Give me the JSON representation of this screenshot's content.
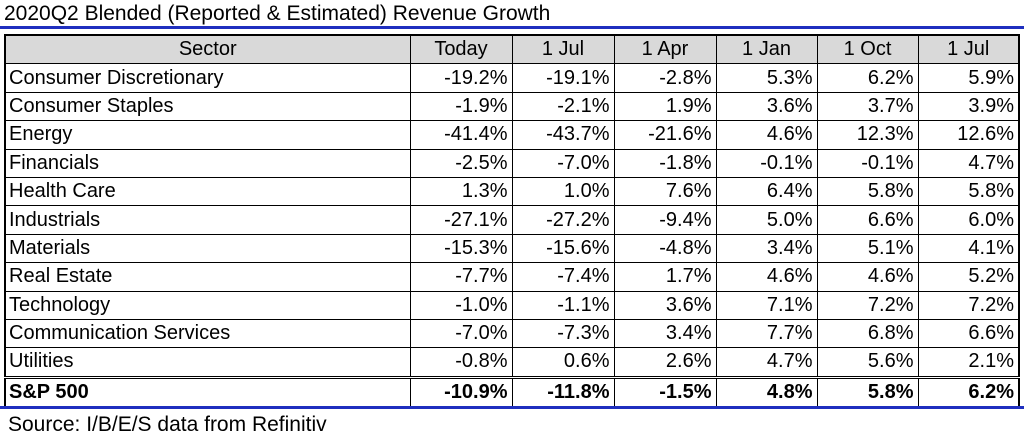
{
  "title": "2020Q2 Blended (Reported & Estimated) Revenue Growth",
  "source": "Source: I/B/E/S data from Refinitiv",
  "colors": {
    "rule": "#1f2fbf",
    "header_bg": "#d9d9d9"
  },
  "chart_data": {
    "type": "table",
    "title": "2020Q2 Blended (Reported & Estimated) Revenue Growth",
    "columns": [
      "Sector",
      "Today",
      "1 Jul",
      "1 Apr",
      "1 Jan",
      "1 Oct",
      "1 Jul"
    ],
    "rows": [
      [
        "Consumer Discretionary",
        "-19.2%",
        "-19.1%",
        "-2.8%",
        "5.3%",
        "6.2%",
        "5.9%"
      ],
      [
        "Consumer Staples",
        "-1.9%",
        "-2.1%",
        "1.9%",
        "3.6%",
        "3.7%",
        "3.9%"
      ],
      [
        "Energy",
        "-41.4%",
        "-43.7%",
        "-21.6%",
        "4.6%",
        "12.3%",
        "12.6%"
      ],
      [
        "Financials",
        "-2.5%",
        "-7.0%",
        "-1.8%",
        "-0.1%",
        "-0.1%",
        "4.7%"
      ],
      [
        "Health Care",
        "1.3%",
        "1.0%",
        "7.6%",
        "6.4%",
        "5.8%",
        "5.8%"
      ],
      [
        "Industrials",
        "-27.1%",
        "-27.2%",
        "-9.4%",
        "5.0%",
        "6.6%",
        "6.0%"
      ],
      [
        "Materials",
        "-15.3%",
        "-15.6%",
        "-4.8%",
        "3.4%",
        "5.1%",
        "4.1%"
      ],
      [
        "Real Estate",
        "-7.7%",
        "-7.4%",
        "1.7%",
        "4.6%",
        "4.6%",
        "5.2%"
      ],
      [
        "Technology",
        "-1.0%",
        "-1.1%",
        "3.6%",
        "7.1%",
        "7.2%",
        "7.2%"
      ],
      [
        "Communication Services",
        "-7.0%",
        "-7.3%",
        "3.4%",
        "7.7%",
        "6.8%",
        "6.6%"
      ],
      [
        "Utilities",
        "-0.8%",
        "0.6%",
        "2.6%",
        "4.7%",
        "5.6%",
        "2.1%"
      ]
    ],
    "total": [
      "S&P 500",
      "-10.9%",
      "-11.8%",
      "-1.5%",
      "4.8%",
      "5.8%",
      "6.2%"
    ]
  }
}
